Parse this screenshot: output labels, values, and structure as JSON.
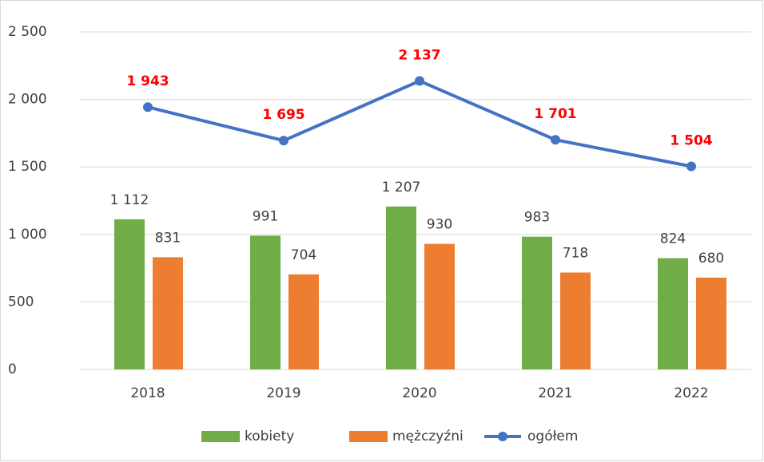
{
  "chart_data": {
    "type": "bar",
    "categories": [
      "2018",
      "2019",
      "2020",
      "2021",
      "2022"
    ],
    "series": [
      {
        "name": "kobiety",
        "color": "#70ad47",
        "type": "bar",
        "values": [
          1112,
          991,
          1207,
          983,
          824
        ],
        "value_labels": [
          "1 112",
          "991",
          "1 207",
          "983",
          "824"
        ]
      },
      {
        "name": "mężczyźni",
        "color": "#ed7d31",
        "type": "bar",
        "values": [
          831,
          704,
          930,
          718,
          680
        ],
        "value_labels": [
          "831",
          "704",
          "930",
          "718",
          "680"
        ]
      },
      {
        "name": "ogółem",
        "color": "#4472c4",
        "type": "line",
        "values": [
          1943,
          1695,
          2137,
          1701,
          1504
        ],
        "value_labels": [
          "1 943",
          "1 695",
          "2 137",
          "1 701",
          "1 504"
        ]
      }
    ],
    "ylim": [
      0,
      2500
    ],
    "yticks": [
      0,
      500,
      {
        "value": 1000,
        "label": "1 000"
      },
      {
        "value": 1500,
        "label": "1 500"
      },
      {
        "value": 2000,
        "label": "2 000"
      },
      {
        "value": 2500,
        "label": "2 500"
      }
    ],
    "grid": true,
    "legend": "bottom"
  }
}
